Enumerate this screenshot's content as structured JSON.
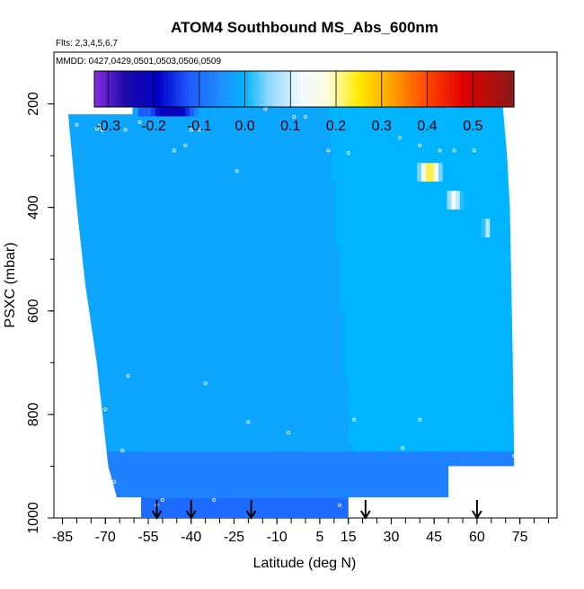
{
  "chart_data": {
    "type": "heatmap",
    "title": "ATOM4 Southbound MS_Abs_600nm",
    "flights_note": "Flts: 2,3,4,5,6,7",
    "dates_note": "MMDD: 0427,0429,0501,0503,0506,0509",
    "xlabel": "Latitude (deg N)",
    "ylabel": "PSXC (mbar)",
    "x_ticks": [
      -85,
      -70,
      -55,
      -40,
      -25,
      -10,
      5,
      15,
      30,
      45,
      60,
      75
    ],
    "x_tick_labels": [
      "-85",
      "-70",
      "-55",
      "-40",
      "-25",
      "-10",
      "5",
      "15",
      "30",
      "45",
      "60",
      "75"
    ],
    "xlim": [
      -88,
      88
    ],
    "y_ticks": [
      200,
      400,
      600,
      800,
      1000
    ],
    "y_tick_labels": [
      "200",
      "400",
      "600",
      "800",
      "1000"
    ],
    "ylim": [
      1000,
      100
    ],
    "y_inverted": true,
    "colorbar": {
      "ticks": [
        -0.3,
        -0.2,
        -0.1,
        0.0,
        0.1,
        0.2,
        0.3,
        0.4,
        0.5
      ],
      "tick_labels": [
        "-0.3",
        "-0.2",
        "-0.1",
        "0.0",
        "0.1",
        "0.2",
        "0.3",
        "0.4",
        "0.5"
      ],
      "range": [
        -0.33,
        0.59
      ],
      "stops": [
        {
          "v": -0.33,
          "color": "#8a2be2"
        },
        {
          "v": -0.26,
          "color": "#1a0aa8"
        },
        {
          "v": -0.19,
          "color": "#0000c8"
        },
        {
          "v": -0.12,
          "color": "#1e5cff"
        },
        {
          "v": -0.05,
          "color": "#1e90ff"
        },
        {
          "v": 0.0,
          "color": "#00b4ff"
        },
        {
          "v": 0.05,
          "color": "#87d6ff"
        },
        {
          "v": 0.12,
          "color": "#eef8ff"
        },
        {
          "v": 0.18,
          "color": "#fffde0"
        },
        {
          "v": 0.25,
          "color": "#ffea00"
        },
        {
          "v": 0.32,
          "color": "#ffa500"
        },
        {
          "v": 0.4,
          "color": "#ff4500"
        },
        {
          "v": 0.48,
          "color": "#e00000"
        },
        {
          "v": 0.59,
          "color": "#8b1a1a"
        }
      ]
    },
    "field": {
      "background_value": -0.02,
      "upper_left_enhancement": [
        {
          "lat_from": -58,
          "lat_to": -38,
          "p_from": 170,
          "p_to": 215,
          "value": -0.22
        }
      ],
      "right_band_value": 0.0,
      "lower_band_value": -0.07,
      "bottom_band_value": -0.1,
      "hotspots": [
        {
          "lat_from": 39,
          "lat_to": 48,
          "p_from": 310,
          "p_to": 355,
          "value": 0.27
        },
        {
          "lat_from": 49,
          "lat_to": 55,
          "p_from": 370,
          "p_to": 410,
          "value": 0.15
        },
        {
          "lat_from": 62,
          "lat_to": 65,
          "p_from": 420,
          "p_to": 460,
          "value": 0.1
        }
      ]
    },
    "flight_points": [
      {
        "lat": -61,
        "p": 200
      },
      {
        "lat": -58,
        "p": 235
      },
      {
        "lat": -52,
        "p": 195
      },
      {
        "lat": -80,
        "p": 240
      },
      {
        "lat": -73,
        "p": 248
      },
      {
        "lat": -72,
        "p": 243
      },
      {
        "lat": -71,
        "p": 250
      },
      {
        "lat": -63,
        "p": 250
      },
      {
        "lat": -46,
        "p": 290
      },
      {
        "lat": -40,
        "p": 250
      },
      {
        "lat": -42,
        "p": 280
      },
      {
        "lat": -37,
        "p": 250
      },
      {
        "lat": -24,
        "p": 330
      },
      {
        "lat": -14,
        "p": 210
      },
      {
        "lat": -4,
        "p": 225
      },
      {
        "lat": 0,
        "p": 225
      },
      {
        "lat": 8,
        "p": 290
      },
      {
        "lat": 15,
        "p": 295
      },
      {
        "lat": 33,
        "p": 265
      },
      {
        "lat": 40,
        "p": 280
      },
      {
        "lat": 47,
        "p": 290
      },
      {
        "lat": 52,
        "p": 290
      },
      {
        "lat": 59,
        "p": 290
      },
      {
        "lat": -35,
        "p": 740
      },
      {
        "lat": -62,
        "p": 725
      },
      {
        "lat": -70,
        "p": 790
      },
      {
        "lat": -20,
        "p": 815
      },
      {
        "lat": -6,
        "p": 835
      },
      {
        "lat": 17,
        "p": 810
      },
      {
        "lat": 40,
        "p": 810
      },
      {
        "lat": -64,
        "p": 870
      },
      {
        "lat": 34,
        "p": 865
      },
      {
        "lat": -67,
        "p": 930
      },
      {
        "lat": -70,
        "p": 940
      },
      {
        "lat": -71,
        "p": 945
      },
      {
        "lat": -52,
        "p": 975
      },
      {
        "lat": -50,
        "p": 965
      },
      {
        "lat": -32,
        "p": 965
      },
      {
        "lat": 12,
        "p": 975
      },
      {
        "lat": 55,
        "p": 955
      },
      {
        "lat": 73,
        "p": 880
      },
      {
        "lat": 72,
        "p": 190
      }
    ],
    "arrows_lat": [
      -52,
      -40,
      -19,
      21,
      60
    ]
  }
}
